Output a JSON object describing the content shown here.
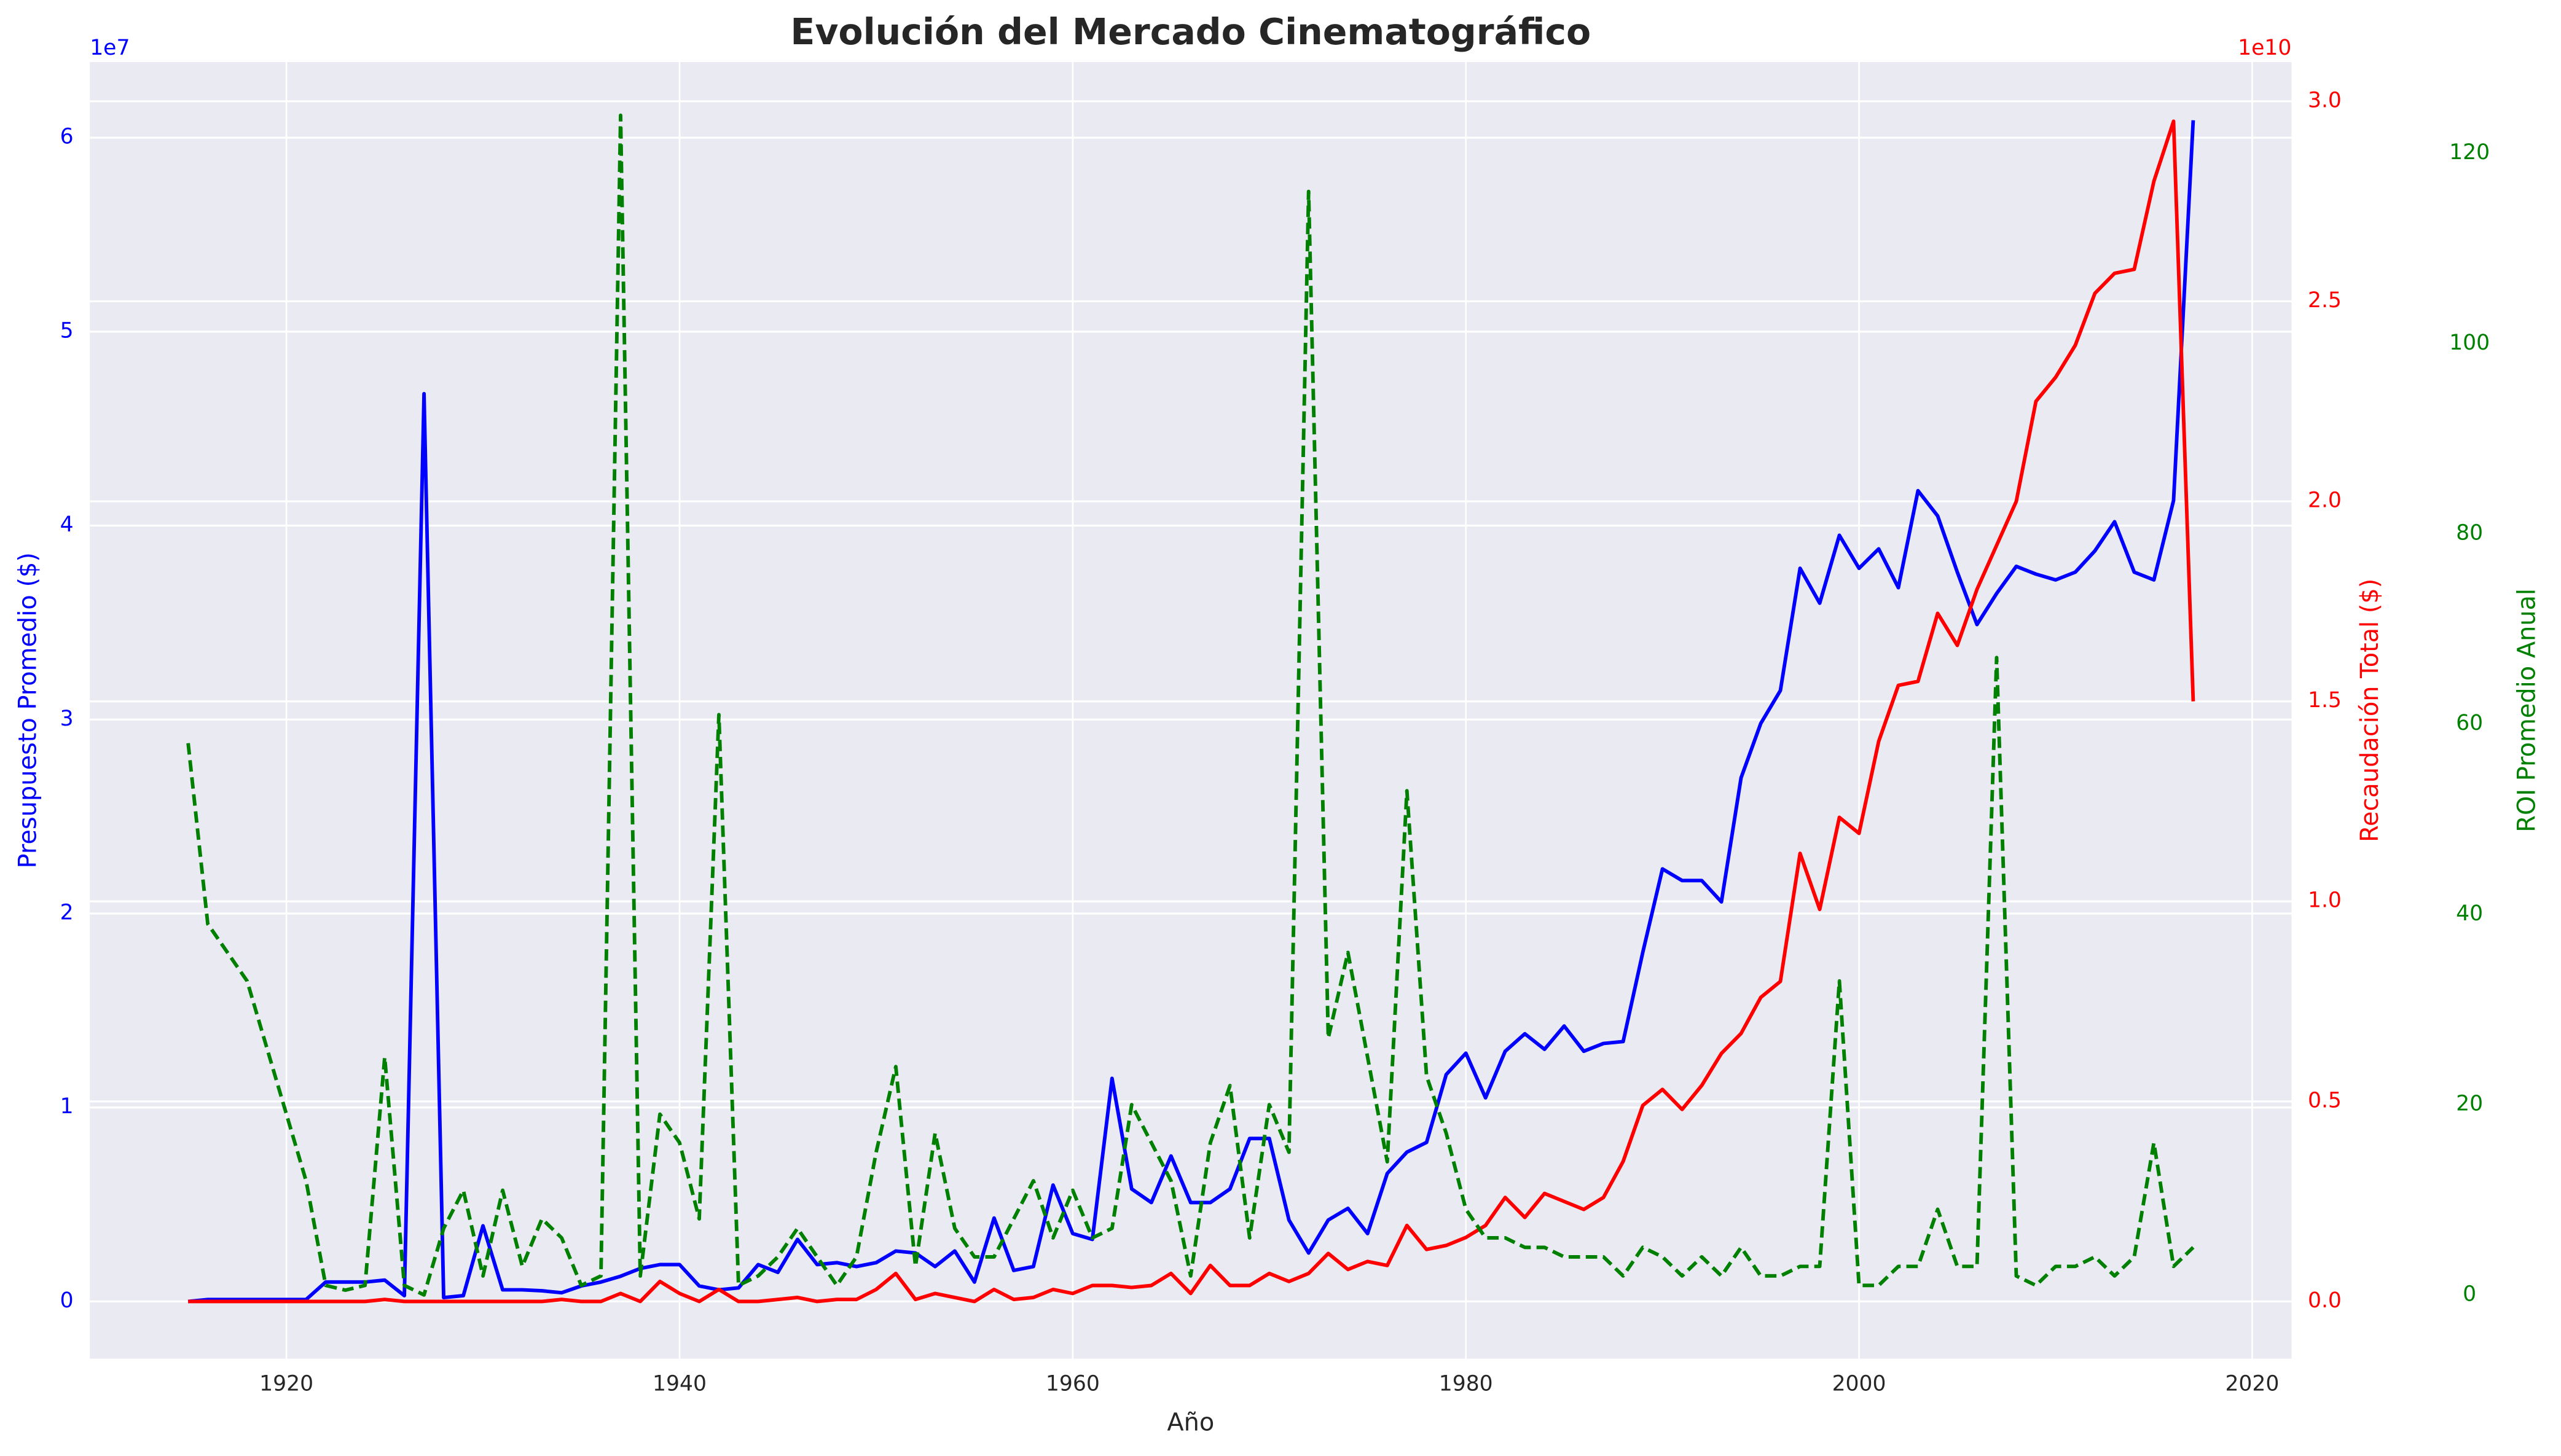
{
  "chart_data": {
    "type": "line",
    "title": "Evolución del Mercado Cinematográfico",
    "xlabel": "Año",
    "ylabel": "Presupuesto Promedio ($)",
    "y2label": "Recaudación Total ($)",
    "y3label": "ROI Promedio Anual",
    "y_offset_label": "1e7",
    "y2_offset_label": "1e10",
    "grid": true,
    "background": "#eaeaf2",
    "x": [
      1915,
      1916,
      1917,
      1918,
      1919,
      1920,
      1921,
      1922,
      1923,
      1924,
      1925,
      1926,
      1927,
      1928,
      1929,
      1930,
      1931,
      1932,
      1933,
      1934,
      1935,
      1936,
      1937,
      1938,
      1939,
      1940,
      1941,
      1942,
      1943,
      1944,
      1945,
      1946,
      1947,
      1948,
      1949,
      1950,
      1951,
      1952,
      1953,
      1954,
      1955,
      1956,
      1957,
      1958,
      1959,
      1960,
      1961,
      1962,
      1963,
      1964,
      1965,
      1966,
      1967,
      1968,
      1969,
      1970,
      1971,
      1972,
      1973,
      1974,
      1975,
      1976,
      1977,
      1978,
      1979,
      1980,
      1981,
      1982,
      1983,
      1984,
      1985,
      1986,
      1987,
      1988,
      1989,
      1990,
      1991,
      1992,
      1993,
      1994,
      1995,
      1996,
      1997,
      1998,
      1999,
      2000,
      2001,
      2002,
      2003,
      2004,
      2005,
      2006,
      2007,
      2008,
      2009,
      2010,
      2011,
      2012,
      2013,
      2014,
      2015,
      2016,
      2017
    ],
    "xlim": [
      1910,
      2022
    ],
    "xticks": [
      1920,
      1940,
      1960,
      1980,
      2000,
      2020
    ],
    "ylim": [
      -0.295,
      6.39
    ],
    "yticks": [
      0,
      1,
      2,
      3,
      4,
      5,
      6
    ],
    "y2lim": [
      -0.143,
      3.098
    ],
    "y2ticks": [
      {
        "value": 0,
        "label": "0.0"
      },
      {
        "value": 0.5,
        "label": "0.5"
      },
      {
        "value": 1,
        "label": "1.0"
      },
      {
        "value": 1.5,
        "label": "1.5"
      },
      {
        "value": 2,
        "label": "2.0"
      },
      {
        "value": 2.5,
        "label": "2.5"
      },
      {
        "value": 3,
        "label": "3.0"
      }
    ],
    "y3lim": [
      -6.7,
      129.6
    ],
    "y3ticks": [
      0,
      20,
      40,
      60,
      80,
      100,
      120
    ],
    "series": [
      {
        "name": "Presupuesto Promedio ($)",
        "color": "#0000ff",
        "axis": "y",
        "linestyle": "solid",
        "values": [
          0,
          0.01,
          0.01,
          0.01,
          0.01,
          0.01,
          0.01,
          0.1,
          0.1,
          0.1,
          0.11,
          0.03,
          4.68,
          0.02,
          0.03,
          0.39,
          0.06,
          0.06,
          0.055,
          0.045,
          0.08,
          0.1,
          0.13,
          0.17,
          0.19,
          0.19,
          0.08,
          0.06,
          0.07,
          0.19,
          0.15,
          0.32,
          0.19,
          0.2,
          0.18,
          0.2,
          0.26,
          0.25,
          0.18,
          0.26,
          0.1,
          0.43,
          0.16,
          0.18,
          0.6,
          0.35,
          0.32,
          1.15,
          0.58,
          0.51,
          0.75,
          0.51,
          0.51,
          0.58,
          0.84,
          0.84,
          0.42,
          0.25,
          0.42,
          0.48,
          0.35,
          0.66,
          0.77,
          0.82,
          1.17,
          1.28,
          1.05,
          1.29,
          1.38,
          1.3,
          1.42,
          1.29,
          1.33,
          1.34,
          1.8,
          2.23,
          2.17,
          2.17,
          2.06,
          2.7,
          2.98,
          3.15,
          3.78,
          3.6,
          3.95,
          3.78,
          3.88,
          3.68,
          4.18,
          4.05,
          3.76,
          3.49,
          3.65,
          3.79,
          3.75,
          3.72,
          3.76,
          3.87,
          4.02,
          3.76,
          3.72,
          4.13,
          6.09
        ]
      },
      {
        "name": "Recaudación Total ($)",
        "color": "#ff0000",
        "axis": "y2",
        "linestyle": "solid",
        "values": [
          0,
          0,
          0,
          0,
          0,
          0,
          0,
          0,
          0,
          0,
          0.005,
          0,
          0,
          0,
          0,
          0,
          0,
          0,
          0,
          0.005,
          0,
          0,
          0.02,
          0,
          0.05,
          0.02,
          0,
          0.03,
          0,
          0,
          0.005,
          0.01,
          0,
          0.005,
          0.005,
          0.03,
          0.07,
          0.005,
          0.02,
          0.01,
          0,
          0.03,
          0.005,
          0.01,
          0.03,
          0.02,
          0.04,
          0.04,
          0.035,
          0.04,
          0.07,
          0.02,
          0.09,
          0.04,
          0.04,
          0.07,
          0.05,
          0.07,
          0.12,
          0.08,
          0.1,
          0.09,
          0.19,
          0.13,
          0.14,
          0.16,
          0.19,
          0.26,
          0.21,
          0.27,
          0.25,
          0.23,
          0.26,
          0.35,
          0.49,
          0.53,
          0.48,
          0.54,
          0.62,
          0.67,
          0.76,
          0.8,
          1.12,
          0.98,
          1.21,
          1.17,
          1.4,
          1.54,
          1.55,
          1.72,
          1.64,
          1.78,
          1.89,
          2.0,
          2.25,
          2.31,
          2.39,
          2.52,
          2.57,
          2.58,
          2.8,
          2.95,
          1.5
        ]
      },
      {
        "name": "ROI Promedio Anual",
        "color": "#008000",
        "axis": "y3",
        "linestyle": "dashed",
        "values": [
          58,
          39,
          36,
          33,
          26,
          19,
          12,
          1,
          0.5,
          1,
          25,
          1,
          0,
          7,
          11,
          2,
          11,
          3,
          8,
          6,
          1,
          2,
          124,
          2,
          19,
          16,
          8,
          61,
          1,
          2,
          4,
          7,
          4,
          1,
          4,
          15,
          24,
          3,
          17,
          7,
          4,
          4,
          8,
          12,
          6,
          11,
          6,
          7,
          20,
          16,
          12,
          2,
          16,
          22,
          6,
          20,
          15,
          116,
          27,
          36,
          25,
          14,
          53,
          23,
          17,
          9,
          6,
          6,
          5,
          5,
          4,
          4,
          4,
          2,
          5,
          4,
          2,
          4,
          2,
          5,
          2,
          2,
          3,
          3,
          33,
          1,
          1,
          3,
          3,
          9,
          3,
          3,
          67,
          2,
          1,
          3,
          3,
          4,
          2,
          4,
          16,
          3,
          5
        ]
      }
    ]
  }
}
